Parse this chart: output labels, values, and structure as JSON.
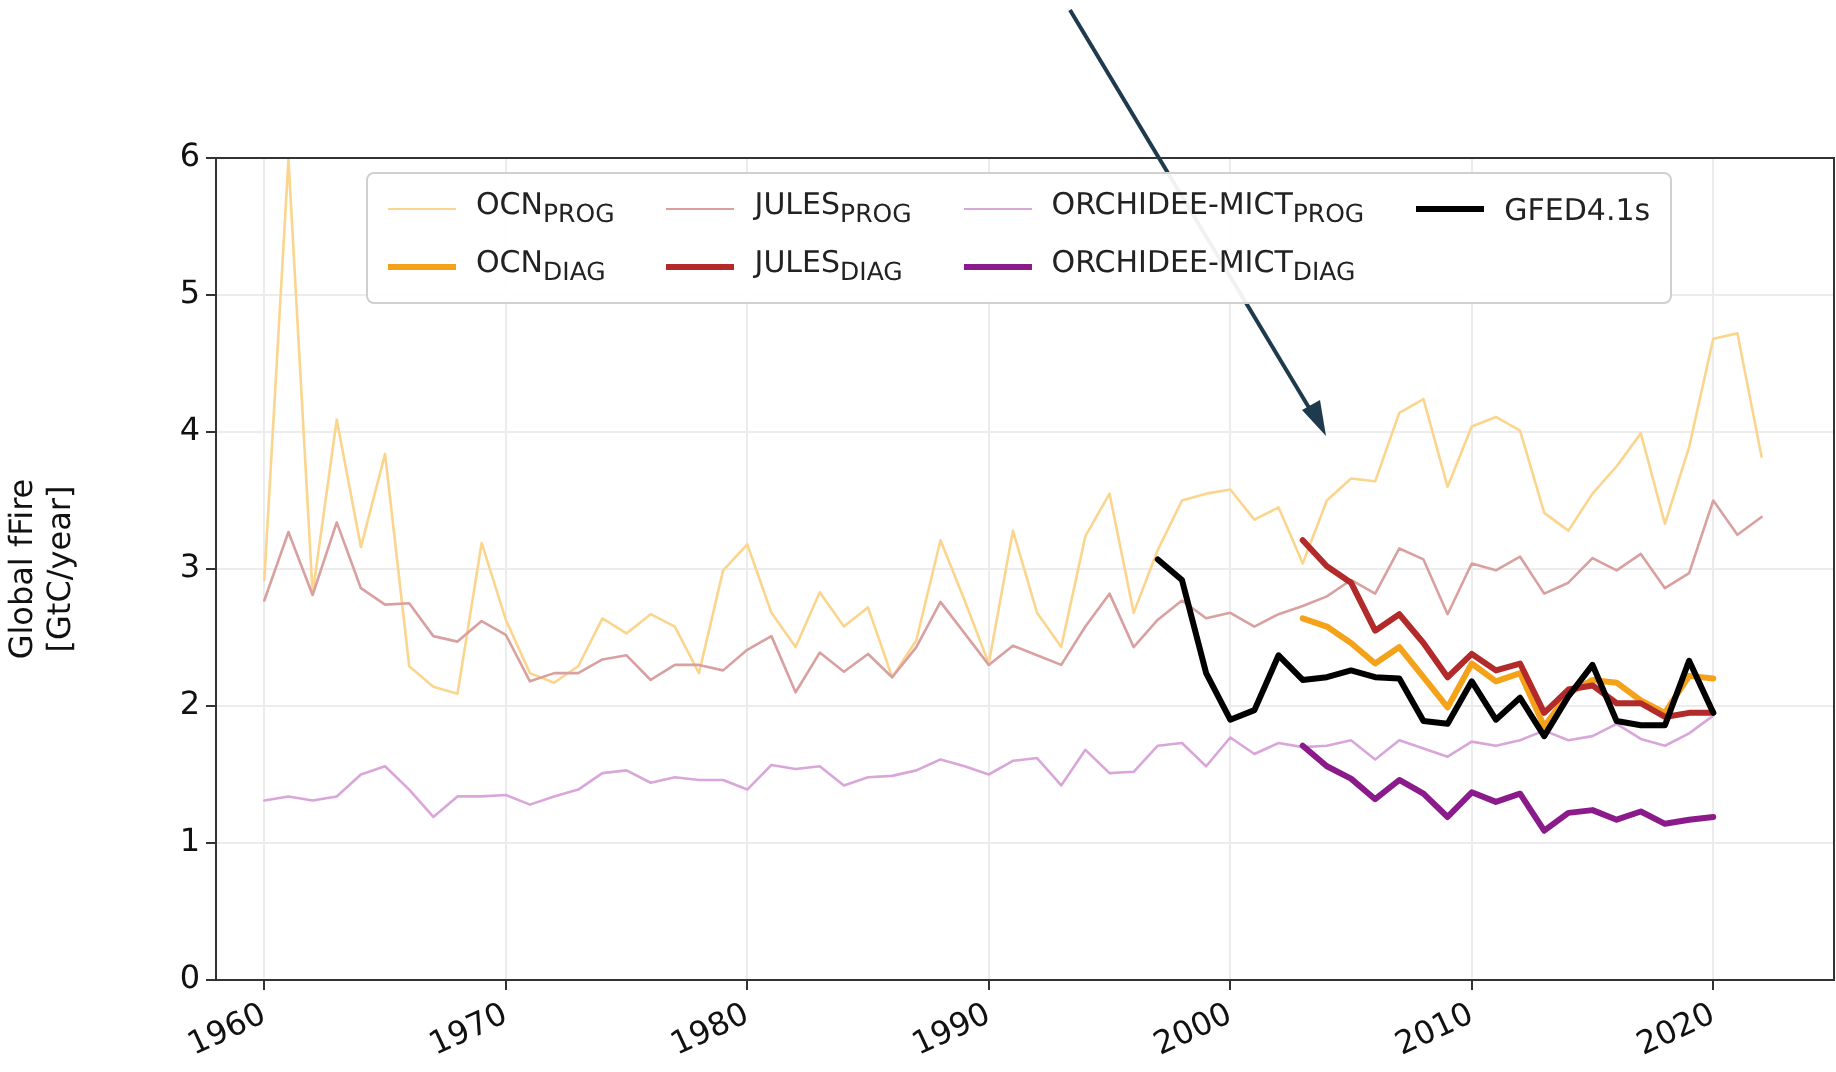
{
  "chart_data": {
    "type": "line",
    "ylabel": "Global fFire\n[GtC/year]",
    "x": [
      1960,
      1961,
      1962,
      1963,
      1964,
      1965,
      1966,
      1967,
      1968,
      1969,
      1970,
      1971,
      1972,
      1973,
      1974,
      1975,
      1976,
      1977,
      1978,
      1979,
      1980,
      1981,
      1982,
      1983,
      1984,
      1985,
      1986,
      1987,
      1988,
      1989,
      1990,
      1991,
      1992,
      1993,
      1994,
      1995,
      1996,
      1997,
      1998,
      1999,
      2000,
      2001,
      2002,
      2003,
      2004,
      2005,
      2006,
      2007,
      2008,
      2009,
      2010,
      2011,
      2012,
      2013,
      2014,
      2015,
      2016,
      2017,
      2018,
      2019,
      2020,
      2021,
      2022
    ],
    "xlim": [
      1958,
      2025
    ],
    "xticks": [
      1960,
      1970,
      1980,
      1990,
      2000,
      2010,
      2020
    ],
    "ylim": [
      0,
      6
    ],
    "yticks": [
      0,
      1,
      2,
      3,
      4,
      5,
      6
    ],
    "grid": true,
    "legend": "top",
    "marker": "none",
    "line_style": "solid",
    "series": [
      {
        "name": "OCN$_{PROG}$",
        "color": "#fbd58e",
        "values": [
          2.92,
          5.99,
          2.82,
          4.09,
          3.16,
          3.84,
          2.29,
          2.14,
          2.09,
          3.19,
          2.63,
          2.24,
          2.17,
          2.29,
          2.64,
          2.53,
          2.67,
          2.58,
          2.24,
          2.99,
          3.18,
          2.68,
          2.43,
          2.83,
          2.58,
          2.72,
          2.21,
          2.48,
          3.21,
          2.77,
          2.31,
          3.28,
          2.68,
          2.43,
          3.24,
          3.55,
          2.68,
          3.14,
          3.5,
          3.55,
          3.58,
          3.36,
          3.45,
          3.04,
          3.5,
          3.66,
          3.64,
          4.14,
          4.24,
          3.6,
          4.04,
          4.11,
          4.01,
          3.41,
          3.28,
          3.55,
          3.75,
          3.99,
          3.33,
          3.89,
          4.68,
          4.72,
          3.82
        ]
      },
      {
        "name": "OCN$_{DIAG}$",
        "color": "#f5a21b",
        "values": [
          null,
          null,
          null,
          null,
          null,
          null,
          null,
          null,
          null,
          null,
          null,
          null,
          null,
          null,
          null,
          null,
          null,
          null,
          null,
          null,
          null,
          null,
          null,
          null,
          null,
          null,
          null,
          null,
          null,
          null,
          null,
          null,
          null,
          null,
          null,
          null,
          null,
          null,
          null,
          null,
          null,
          null,
          null,
          2.64,
          2.58,
          2.46,
          2.31,
          2.43,
          2.21,
          1.99,
          2.31,
          2.18,
          2.24,
          1.85,
          2.09,
          2.19,
          2.17,
          2.04,
          1.95,
          2.22,
          2.2,
          null,
          null
        ]
      },
      {
        "name": "JULES$_{PROG}$",
        "color": "#d9a0a0",
        "values": [
          2.77,
          3.27,
          2.81,
          3.34,
          2.86,
          2.74,
          2.75,
          2.51,
          2.47,
          2.62,
          2.52,
          2.18,
          2.24,
          2.24,
          2.34,
          2.37,
          2.19,
          2.3,
          2.3,
          2.26,
          2.41,
          2.51,
          2.1,
          2.39,
          2.25,
          2.38,
          2.21,
          2.43,
          2.76,
          2.53,
          2.3,
          2.44,
          2.37,
          2.3,
          2.58,
          2.82,
          2.43,
          2.63,
          2.77,
          2.64,
          2.68,
          2.58,
          2.67,
          2.73,
          2.8,
          2.92,
          2.82,
          3.15,
          3.07,
          2.67,
          3.04,
          2.99,
          3.09,
          2.82,
          2.9,
          3.08,
          2.99,
          3.11,
          2.86,
          2.97,
          3.5,
          3.25,
          3.38
        ]
      },
      {
        "name": "JULES$_{DIAG}$",
        "color": "#b22a2a",
        "values": [
          null,
          null,
          null,
          null,
          null,
          null,
          null,
          null,
          null,
          null,
          null,
          null,
          null,
          null,
          null,
          null,
          null,
          null,
          null,
          null,
          null,
          null,
          null,
          null,
          null,
          null,
          null,
          null,
          null,
          null,
          null,
          null,
          null,
          null,
          null,
          null,
          null,
          null,
          null,
          null,
          null,
          null,
          null,
          3.21,
          3.02,
          2.9,
          2.55,
          2.67,
          2.46,
          2.21,
          2.38,
          2.26,
          2.31,
          1.95,
          2.12,
          2.15,
          2.02,
          2.02,
          1.92,
          1.95,
          1.95,
          null,
          null
        ]
      },
      {
        "name": "ORCHIDEE-MICT$_{PROG}$",
        "color": "#d9a6d9",
        "values": [
          1.31,
          1.34,
          1.31,
          1.34,
          1.5,
          1.56,
          1.39,
          1.19,
          1.34,
          1.34,
          1.35,
          1.28,
          1.34,
          1.39,
          1.51,
          1.53,
          1.44,
          1.48,
          1.46,
          1.46,
          1.39,
          1.57,
          1.54,
          1.56,
          1.42,
          1.48,
          1.49,
          1.53,
          1.61,
          1.56,
          1.5,
          1.6,
          1.62,
          1.42,
          1.68,
          1.51,
          1.52,
          1.71,
          1.73,
          1.56,
          1.77,
          1.65,
          1.73,
          1.7,
          1.71,
          1.75,
          1.61,
          1.75,
          1.69,
          1.63,
          1.74,
          1.71,
          1.75,
          1.82,
          1.75,
          1.78,
          1.87,
          1.76,
          1.71,
          1.8,
          1.93,
          null,
          null
        ]
      },
      {
        "name": "ORCHIDEE-MICT$_{DIAG}$",
        "color": "#8b1a8b",
        "values": [
          null,
          null,
          null,
          null,
          null,
          null,
          null,
          null,
          null,
          null,
          null,
          null,
          null,
          null,
          null,
          null,
          null,
          null,
          null,
          null,
          null,
          null,
          null,
          null,
          null,
          null,
          null,
          null,
          null,
          null,
          null,
          null,
          null,
          null,
          null,
          null,
          null,
          null,
          null,
          null,
          null,
          null,
          null,
          1.71,
          1.56,
          1.47,
          1.32,
          1.46,
          1.36,
          1.19,
          1.37,
          1.3,
          1.36,
          1.09,
          1.22,
          1.24,
          1.17,
          1.23,
          1.14,
          1.17,
          1.19,
          null,
          null
        ]
      },
      {
        "name": "GFED4.1s",
        "color": "#000000",
        "values": [
          null,
          null,
          null,
          null,
          null,
          null,
          null,
          null,
          null,
          null,
          null,
          null,
          null,
          null,
          null,
          null,
          null,
          null,
          null,
          null,
          null,
          null,
          null,
          null,
          null,
          null,
          null,
          null,
          null,
          null,
          null,
          null,
          null,
          null,
          null,
          null,
          null,
          3.07,
          2.92,
          2.24,
          1.9,
          1.97,
          2.37,
          2.19,
          2.21,
          2.26,
          2.21,
          2.2,
          1.89,
          1.87,
          2.18,
          1.9,
          2.06,
          1.78,
          2.07,
          2.3,
          1.89,
          1.86,
          1.86,
          2.33,
          1.95,
          null,
          null
        ]
      }
    ]
  }
}
